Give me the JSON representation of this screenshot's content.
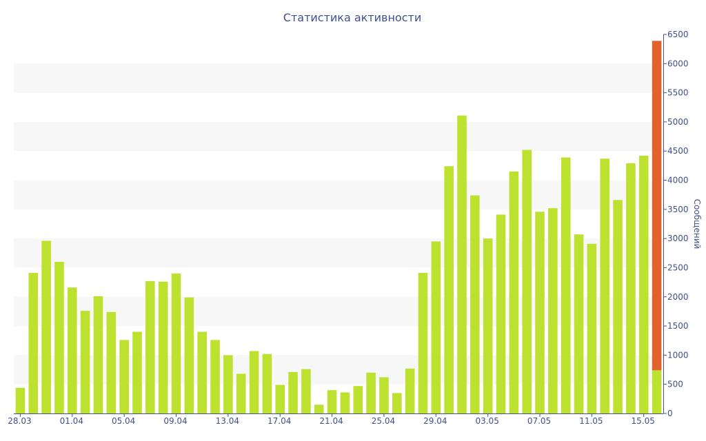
{
  "chart_data": {
    "type": "bar",
    "title": "Статистика активности",
    "xlabel": "",
    "ylabel": "Сообщений",
    "ylim": [
      0,
      6500
    ],
    "yticks": [
      0,
      500,
      1000,
      1500,
      2000,
      2500,
      3000,
      3500,
      4000,
      4500,
      5000,
      5500,
      6000,
      6500
    ],
    "yaxis_position": "right",
    "grid": "alternating horizontal bands",
    "xtick_labels": [
      "28.03",
      "01.04",
      "05.04",
      "09.04",
      "13.04",
      "17.04",
      "21.04",
      "25.04",
      "29.04",
      "03.05",
      "07.05",
      "11.05",
      "15.05"
    ],
    "categories": [
      "28.03",
      "29.03",
      "30.03",
      "31.03",
      "01.04",
      "02.04",
      "03.04",
      "04.04",
      "05.04",
      "06.04",
      "07.04",
      "08.04",
      "09.04",
      "10.04",
      "11.04",
      "12.04",
      "13.04",
      "14.04",
      "15.04",
      "16.04",
      "17.04",
      "18.04",
      "19.04",
      "20.04",
      "21.04",
      "22.04",
      "23.04",
      "24.04",
      "25.04",
      "26.04",
      "27.04",
      "28.04",
      "29.04",
      "30.04",
      "01.05",
      "02.05",
      "03.05",
      "04.05",
      "05.05",
      "06.05",
      "07.05",
      "08.05",
      "09.05",
      "10.05",
      "11.05",
      "12.05",
      "13.05",
      "14.05",
      "15.05",
      "16.05"
    ],
    "colors": {
      "bar": "#bde12f",
      "highlight": "#e2622b",
      "axis": "#3e4f8a",
      "band": "#f7f7f7"
    },
    "series": [
      {
        "values": [
          440,
          2410,
          2960,
          2600,
          2160,
          1760,
          2010,
          1740,
          1260,
          1400,
          2270,
          2260,
          2400,
          1990,
          1400,
          1260,
          1000,
          680,
          1070,
          1020,
          490,
          710,
          760,
          150,
          400,
          360,
          470,
          700,
          620,
          350,
          770,
          2410,
          2950,
          4240,
          5110,
          3740,
          3000,
          3410,
          4150,
          4520,
          3460,
          3520,
          4390,
          3070,
          2910,
          4370,
          3660,
          4290,
          4420,
          740
        ]
      },
      {
        "values": [
          0,
          0,
          0,
          0,
          0,
          0,
          0,
          0,
          0,
          0,
          0,
          0,
          0,
          0,
          0,
          0,
          0,
          0,
          0,
          0,
          0,
          0,
          0,
          0,
          0,
          0,
          0,
          0,
          0,
          0,
          0,
          0,
          0,
          0,
          0,
          0,
          0,
          0,
          0,
          0,
          0,
          0,
          0,
          0,
          0,
          0,
          0,
          0,
          0,
          5650
        ]
      }
    ]
  }
}
